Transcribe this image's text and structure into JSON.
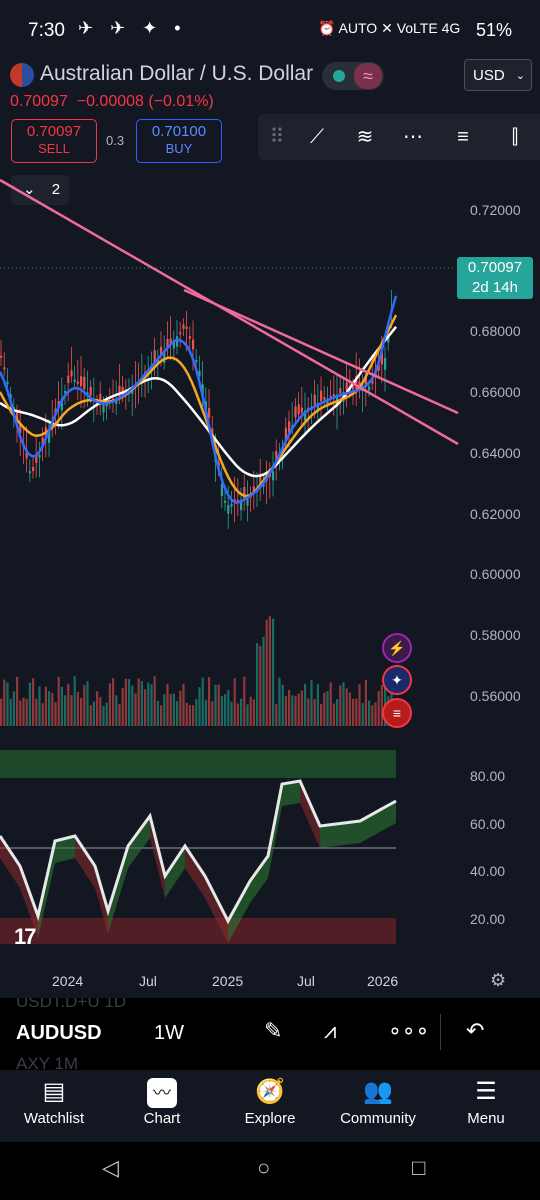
{
  "status_bar": {
    "time": "7:30",
    "left_icons": "✈ ✈ ✦ •",
    "right_icons": "⏰ AUTO ✕ VoLTE 4G",
    "battery": "51%"
  },
  "header": {
    "title": "Australian Dollar / U.S. Dollar",
    "currency": "USD",
    "price": "0.70097",
    "change": "−0.00008",
    "change_pct": "(−0.01%)",
    "sell_price": "0.70097",
    "sell_label": "SELL",
    "spread": "0.3",
    "buy_price": "0.70100",
    "buy_label": "BUY",
    "collapse_count": "2"
  },
  "chart": {
    "price_axis": [
      "0.72000",
      "0.70000",
      "0.68000",
      "0.66000",
      "0.64000",
      "0.62000",
      "0.60000",
      "0.58000",
      "0.56000"
    ],
    "last_price": "0.70097",
    "countdown": "2d 14h",
    "oscillator_axis": [
      "80.00",
      "60.00",
      "40.00",
      "20.00"
    ],
    "time_axis": [
      "2024",
      "Jul",
      "2025",
      "Jul",
      "2026"
    ],
    "colors": {
      "up": "#26a69a",
      "down": "#ef5350",
      "trendline": "#ef6c9a",
      "ma_blue": "#2f6bff",
      "ma_orange": "#f5a623",
      "ma_white": "#ffffff"
    },
    "event_icons": [
      "lightning-icon",
      "australia-flag-icon",
      "usa-flag-icon"
    ]
  },
  "symbol_bar": {
    "symbol": "AUDUSD",
    "timeframe": "1W",
    "ghost_above": "USDT.D+U   1D",
    "ghost_below": "AXY        1M"
  },
  "nav": [
    {
      "label": "Watchlist",
      "icon": "▤"
    },
    {
      "label": "Chart",
      "icon": "〰"
    },
    {
      "label": "Explore",
      "icon": "🧭"
    },
    {
      "label": "Community",
      "icon": "👥"
    },
    {
      "label": "Menu",
      "icon": "☰"
    }
  ],
  "system_nav": {
    "back": "◁",
    "home": "○",
    "recents": "□"
  }
}
